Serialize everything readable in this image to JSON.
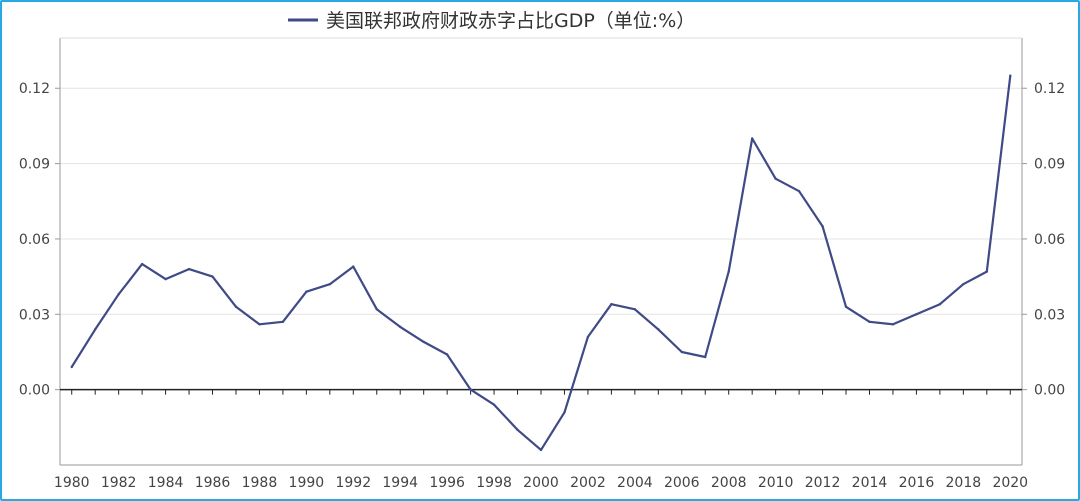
{
  "chart_data": {
    "type": "line",
    "title": "",
    "legend": {
      "entries": [
        "美国联邦政府财政赤字占比GDP（单位:%）"
      ],
      "placement": "top"
    },
    "xlabel": "",
    "ylabel": "",
    "xlim": [
      1979.5,
      2020.5
    ],
    "ylim": [
      -0.03,
      0.14
    ],
    "grid": true,
    "x_ticks": [
      "1980",
      "1982",
      "1984",
      "1986",
      "1988",
      "1990",
      "1992",
      "1994",
      "1996",
      "1998",
      "2000",
      "2002",
      "2004",
      "2006",
      "2008",
      "2010",
      "2012",
      "2014",
      "2016",
      "2018",
      "2020"
    ],
    "y_ticks": [
      "0.00",
      "0.03",
      "0.06",
      "0.09",
      "0.12"
    ],
    "color": "#3f4a86",
    "series": [
      {
        "name": "美国联邦政府财政赤字占比GDP（单位:%）",
        "x": [
          1980,
          1981,
          1982,
          1983,
          1984,
          1985,
          1986,
          1987,
          1988,
          1989,
          1990,
          1991,
          1992,
          1993,
          1994,
          1995,
          1996,
          1997,
          1998,
          1999,
          2000,
          2001,
          2002,
          2003,
          2004,
          2005,
          2006,
          2007,
          2008,
          2009,
          2010,
          2011,
          2012,
          2013,
          2014,
          2015,
          2016,
          2017,
          2018,
          2019,
          2020
        ],
        "values": [
          0.009,
          0.024,
          0.038,
          0.05,
          0.044,
          0.048,
          0.045,
          0.033,
          0.026,
          0.027,
          0.039,
          0.042,
          0.049,
          0.032,
          0.025,
          0.019,
          0.014,
          0.0,
          -0.006,
          -0.016,
          -0.024,
          -0.009,
          0.021,
          0.034,
          0.032,
          0.024,
          0.015,
          0.013,
          0.047,
          0.1,
          0.084,
          0.079,
          0.065,
          0.033,
          0.027,
          0.026,
          0.03,
          0.034,
          0.042,
          0.047,
          0.125
        ]
      }
    ]
  }
}
